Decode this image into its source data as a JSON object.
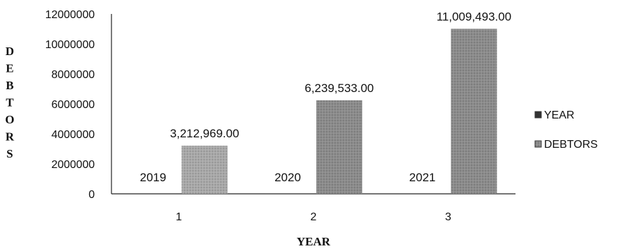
{
  "chart_data": {
    "type": "bar",
    "categories": [
      "1",
      "2",
      "3"
    ],
    "series": [
      {
        "name": "YEAR",
        "values": [
          2019,
          2020,
          2021
        ],
        "data_labels": [
          "2019",
          "2020",
          "2021"
        ],
        "color": "#4a4a4a"
      },
      {
        "name": "DEBTORS",
        "values": [
          3212969,
          6239533,
          11009493
        ],
        "data_labels": [
          "3,212,969.00",
          "6,239,533.00",
          "11,009,493.00"
        ],
        "color": "#8f8f8f"
      }
    ],
    "ylim": [
      0,
      12000000
    ],
    "yticks": [
      "0",
      "2000000",
      "4000000",
      "6000000",
      "8000000",
      "10000000",
      "12000000"
    ],
    "xlabel": "YEAR",
    "ylabel": "DEBTORS",
    "ylabel_letters": [
      "D",
      "E",
      "B",
      "T",
      "O",
      "R",
      "S"
    ],
    "legend_position": "right",
    "grid": false
  }
}
